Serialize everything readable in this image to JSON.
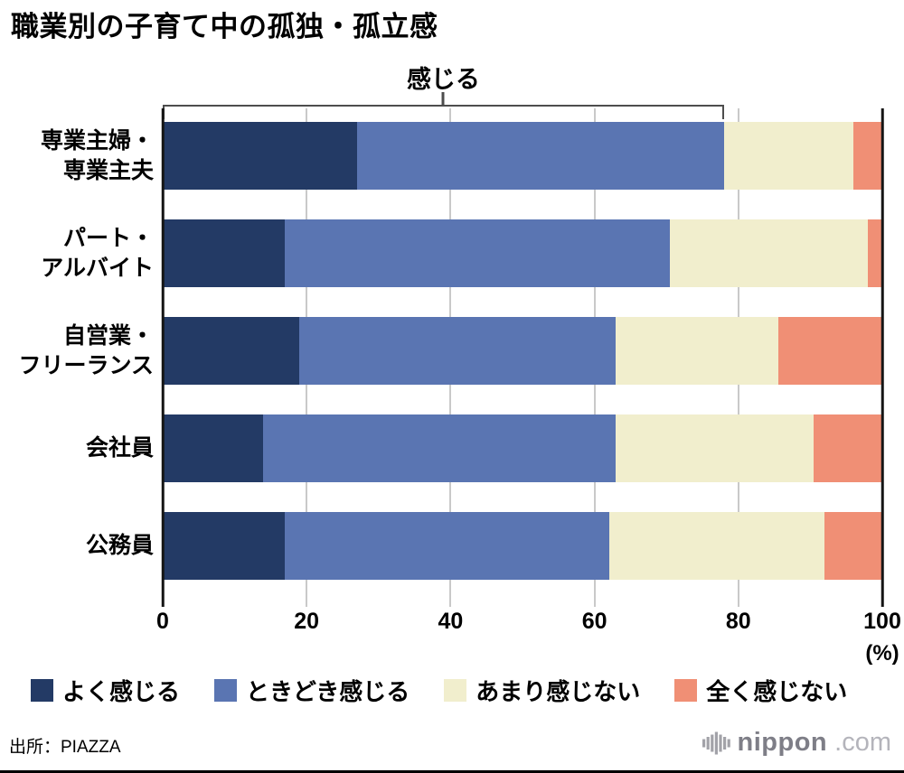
{
  "title": "職業別の子育て中の孤独・孤立感",
  "annotation": {
    "label": "感じる",
    "span_pct": [
      0,
      78
    ]
  },
  "chart_data": {
    "type": "bar",
    "stacked": true,
    "orientation": "horizontal",
    "title": "職業別の子育て中の孤独・孤立感",
    "unit": "(%)",
    "xlim": [
      0,
      100
    ],
    "xticks": [
      0,
      20,
      40,
      60,
      80,
      100
    ],
    "grid": "vertical",
    "legend_position": "bottom",
    "categories": [
      "専業主婦・\n専業主夫",
      "パート・\nアルバイト",
      "自営業・\nフリーランス",
      "会社員",
      "公務員"
    ],
    "series": [
      {
        "name": "よく感じる",
        "color": "#233a65",
        "values": [
          27,
          17,
          19,
          14,
          17
        ]
      },
      {
        "name": "ときどき感じる",
        "color": "#5a75b2",
        "values": [
          51,
          53.5,
          44,
          49,
          45
        ]
      },
      {
        "name": "あまり感じない",
        "color": "#f1eecd",
        "values": [
          18,
          27.5,
          22.5,
          27.5,
          30
        ]
      },
      {
        "name": "全く感じない",
        "color": "#f08f75",
        "values": [
          4,
          2,
          14.5,
          9.5,
          8
        ]
      }
    ],
    "bracket_annotation": {
      "label": "感じる",
      "covers_series": [
        "よく感じる",
        "ときどき感じる"
      ],
      "span_pct": [
        0,
        78
      ]
    }
  },
  "source": "出所：PIAZZA",
  "logo": {
    "brand": "nippon",
    "tld": ".com"
  }
}
